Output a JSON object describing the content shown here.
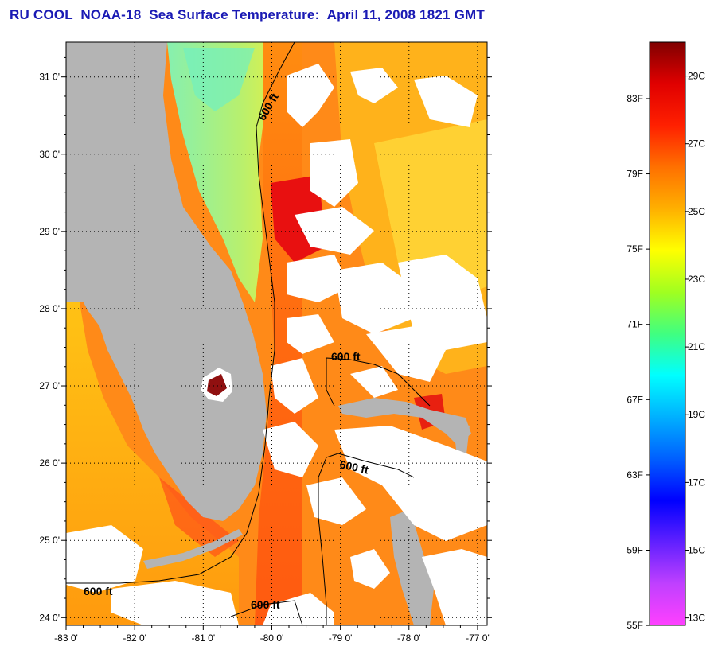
{
  "title": "RU COOL  NOAA-18  Sea Surface Temperature:  April 11, 2008 1821 GMT",
  "map": {
    "lat_labels": [
      "31 0'",
      "30 0'",
      "29 0'",
      "28 0'",
      "27 0'",
      "26 0'",
      "25 0'",
      "24 0'"
    ],
    "lat_values": [
      31,
      30,
      29,
      28,
      27,
      26,
      25,
      24
    ],
    "lon_labels": [
      "-83 0'",
      "-82 0'",
      "-81 0'",
      "-80 0'",
      "-79 0'",
      "-78 0'",
      "-77 0'"
    ],
    "lon_values": [
      -83,
      -82,
      -81,
      -80,
      -79,
      -78,
      -77
    ],
    "lat_range": [
      23.9,
      31.45
    ],
    "lon_range": [
      -83,
      -76.86
    ],
    "contour_labels": [
      "600 ft",
      "600 ft",
      "600 ft",
      "600 ft",
      "600 ft"
    ],
    "colors": {
      "land": "#b4b4b4",
      "cloud": "#ffffff",
      "grid": "#000000"
    }
  },
  "colorbar": {
    "fahrenheit_labels": [
      "83F",
      "79F",
      "75F",
      "71F",
      "67F",
      "63F",
      "59F",
      "55F"
    ],
    "fahrenheit_values": [
      83,
      79,
      75,
      71,
      67,
      63,
      59,
      55
    ],
    "celsius_labels": [
      "29C",
      "27C",
      "25C",
      "23C",
      "21C",
      "19C",
      "17C",
      "15C",
      "13C"
    ],
    "celsius_values": [
      29,
      27,
      25,
      23,
      21,
      19,
      17,
      15,
      13
    ],
    "range_c": [
      12.78,
      30.0
    ],
    "stops": [
      "#ff40ff",
      "#c040ff",
      "#6020ff",
      "#0000ff",
      "#0060ff",
      "#00b0ff",
      "#00ffff",
      "#40ff80",
      "#a0ff20",
      "#ffff00",
      "#ffb000",
      "#ff7000",
      "#ff2000",
      "#e00000",
      "#800000"
    ]
  }
}
